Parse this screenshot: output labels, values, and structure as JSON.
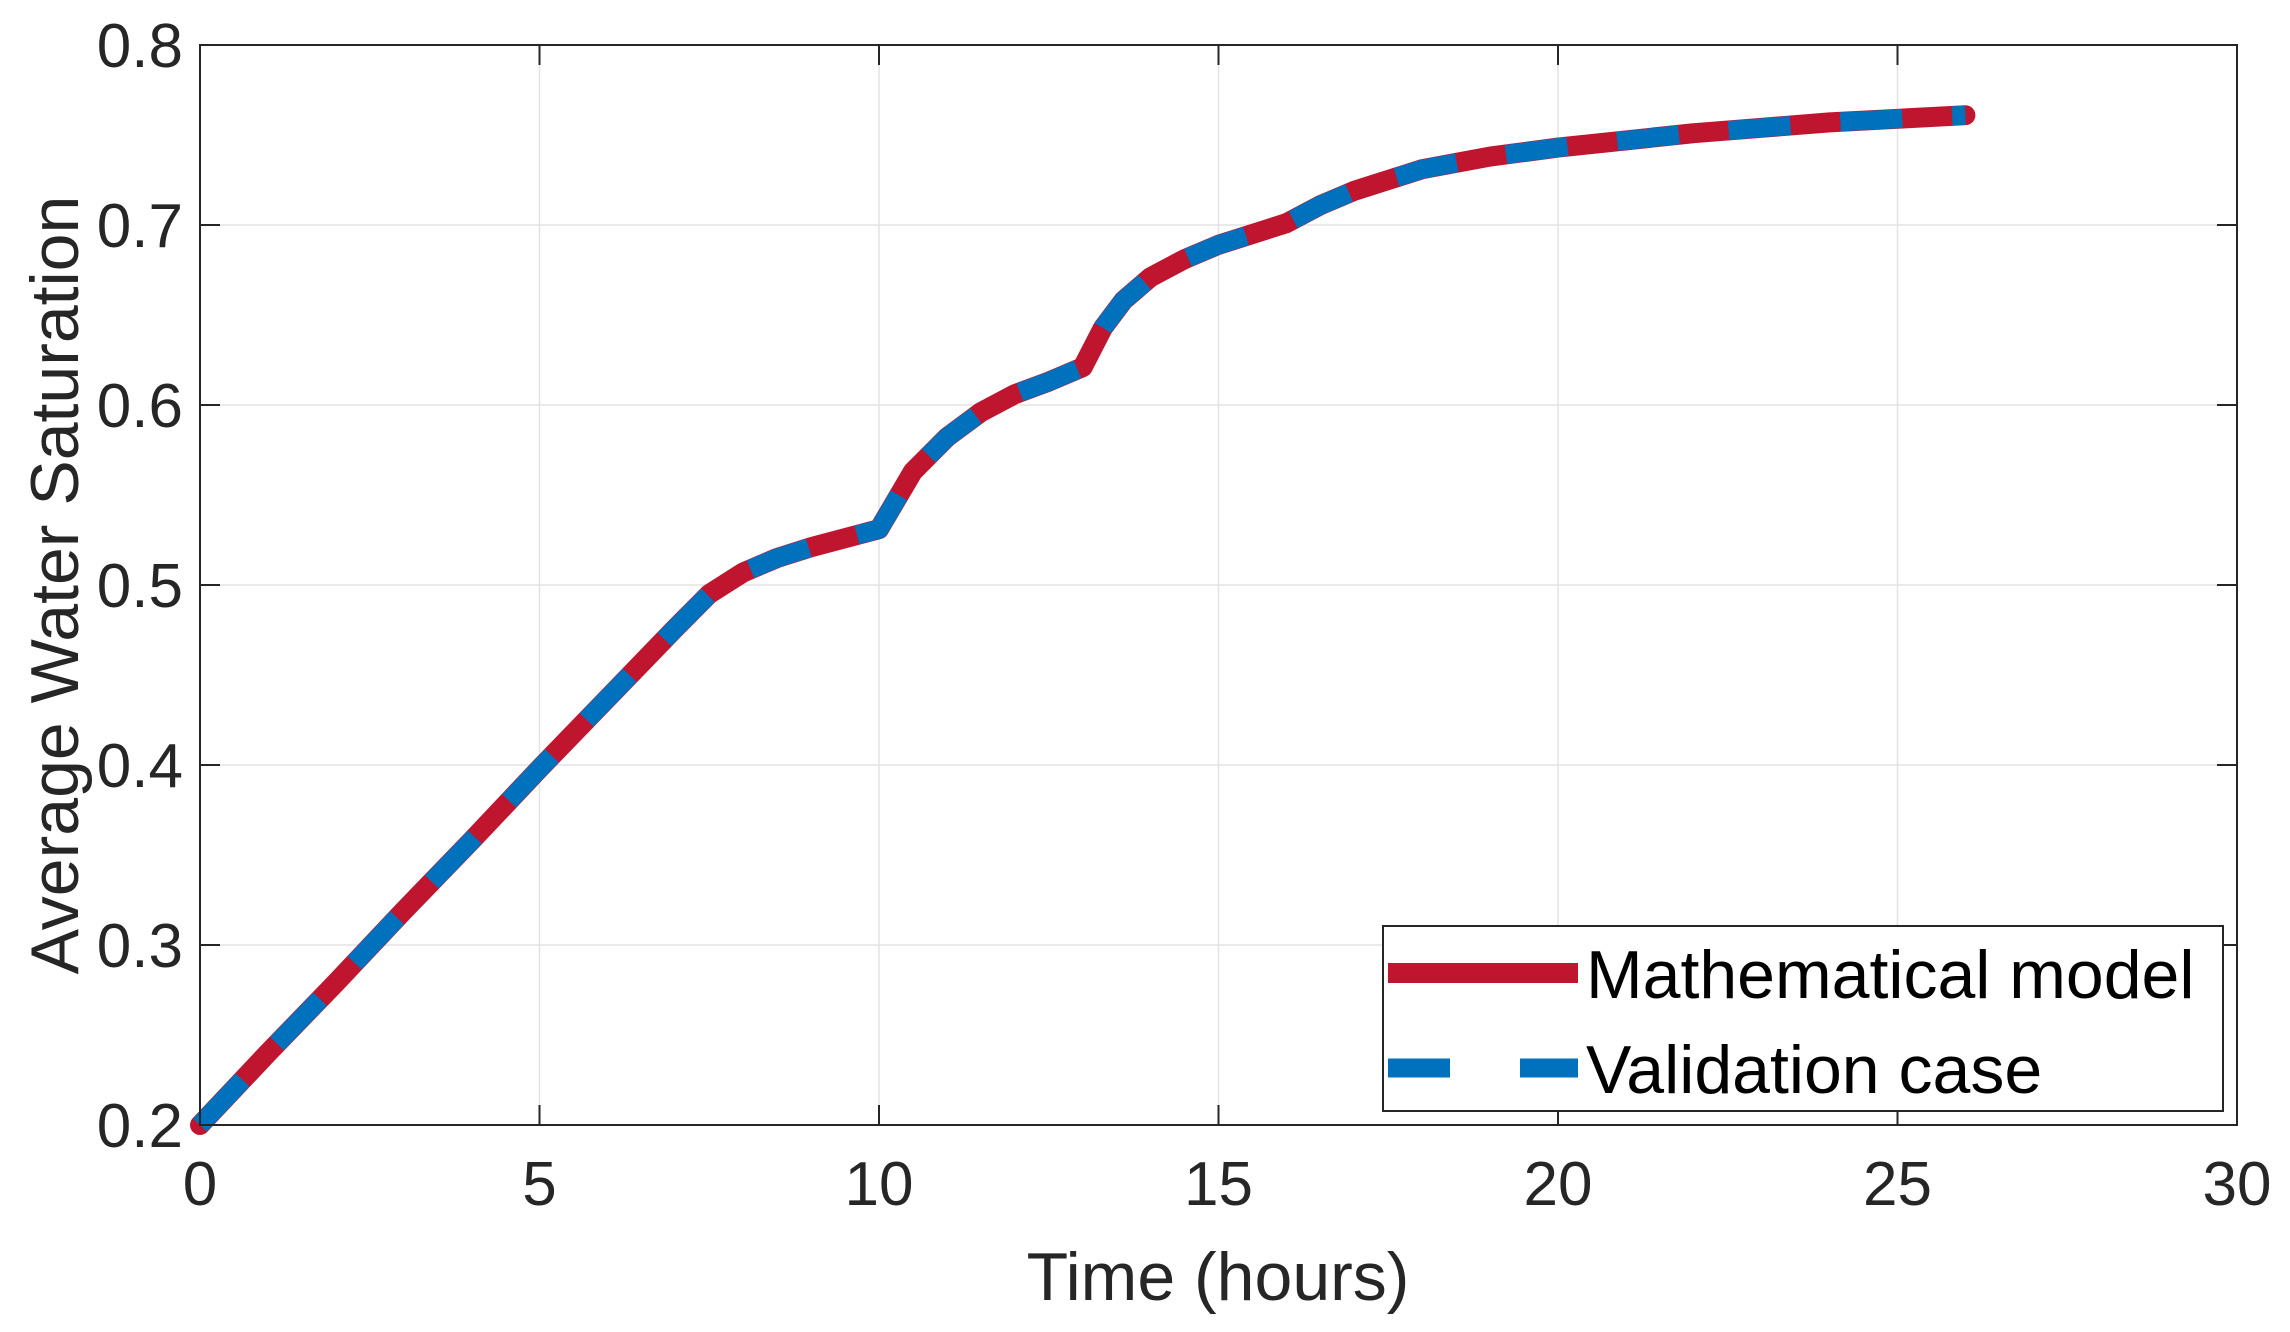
{
  "chart_data": {
    "type": "line",
    "xlabel": "Time (hours)",
    "ylabel": "Average Water Saturation",
    "xlim": [
      0,
      30
    ],
    "ylim": [
      0.2,
      0.8
    ],
    "xticks": [
      0,
      5,
      10,
      15,
      20,
      25,
      30
    ],
    "yticks": [
      0.2,
      0.3,
      0.4,
      0.5,
      0.6,
      0.7,
      0.8
    ],
    "xtick_labels": [
      "0",
      "5",
      "10",
      "15",
      "20",
      "25",
      "30"
    ],
    "ytick_labels": [
      "0.2",
      "0.3",
      "0.4",
      "0.5",
      "0.6",
      "0.7",
      "0.8"
    ],
    "grid": true,
    "legend_position": "bottom-right",
    "series": [
      {
        "name": "Mathematical model",
        "color": "#c0152f",
        "style": "solid",
        "x": [
          0,
          1,
          2,
          3,
          4,
          5,
          6,
          7,
          7.5,
          8,
          8.5,
          9,
          10,
          10.5,
          11,
          11.5,
          12,
          12.5,
          13,
          13.3,
          13.6,
          14,
          14.5,
          15,
          16,
          16.5,
          17,
          18,
          19,
          20,
          21,
          22,
          23,
          24,
          25,
          26
        ],
        "y": [
          0.2,
          0.24,
          0.279,
          0.319,
          0.358,
          0.398,
          0.437,
          0.476,
          0.495,
          0.507,
          0.515,
          0.521,
          0.531,
          0.563,
          0.582,
          0.596,
          0.606,
          0.613,
          0.621,
          0.643,
          0.658,
          0.671,
          0.681,
          0.689,
          0.701,
          0.711,
          0.719,
          0.731,
          0.738,
          0.743,
          0.747,
          0.751,
          0.754,
          0.757,
          0.759,
          0.761
        ]
      },
      {
        "name": "Validation case",
        "color": "#0072bd",
        "style": "dashed",
        "x": [
          0,
          1,
          2,
          3,
          4,
          5,
          6,
          7,
          7.5,
          8,
          8.5,
          9,
          10,
          10.5,
          11,
          11.5,
          12,
          12.5,
          13,
          13.3,
          13.6,
          14,
          14.5,
          15,
          16,
          16.5,
          17,
          18,
          19,
          20,
          21,
          22,
          23,
          24,
          25,
          26
        ],
        "y": [
          0.2,
          0.24,
          0.279,
          0.319,
          0.358,
          0.398,
          0.437,
          0.476,
          0.495,
          0.507,
          0.515,
          0.521,
          0.531,
          0.563,
          0.582,
          0.596,
          0.606,
          0.613,
          0.621,
          0.643,
          0.658,
          0.671,
          0.681,
          0.689,
          0.701,
          0.711,
          0.719,
          0.731,
          0.738,
          0.743,
          0.747,
          0.751,
          0.754,
          0.757,
          0.759,
          0.761
        ]
      }
    ]
  }
}
